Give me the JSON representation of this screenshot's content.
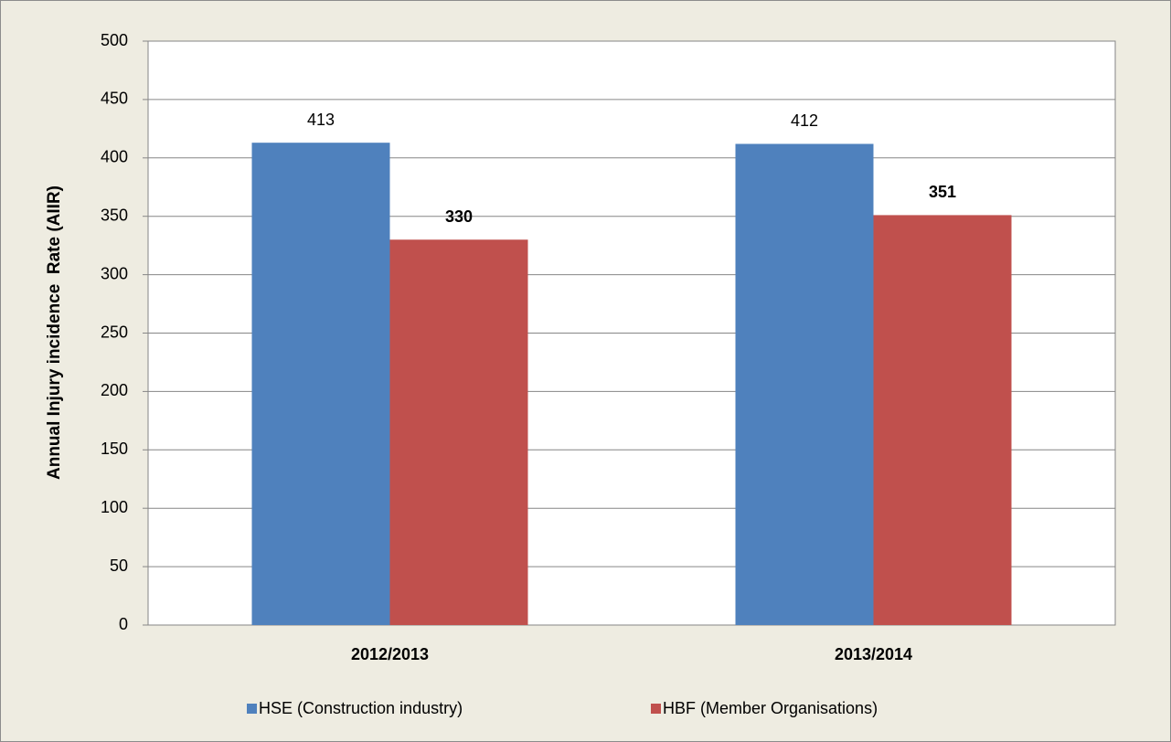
{
  "chart_data": {
    "type": "bar",
    "categories": [
      "2012/2013",
      "2013/2014"
    ],
    "series": [
      {
        "name": "HSE (Construction industry)",
        "color": "#4f81bd",
        "values": [
          413,
          412
        ]
      },
      {
        "name": "HBF (Member Organisations)",
        "color": "#c0504d",
        "values": [
          330,
          351
        ]
      }
    ],
    "y_label": "Annual Injury incidence  Rate (AIIR)",
    "ylim": [
      0,
      500
    ],
    "yticks": [
      0,
      50,
      100,
      150,
      200,
      250,
      300,
      350,
      400,
      450,
      500
    ],
    "grid": true,
    "legend": "bottom"
  }
}
